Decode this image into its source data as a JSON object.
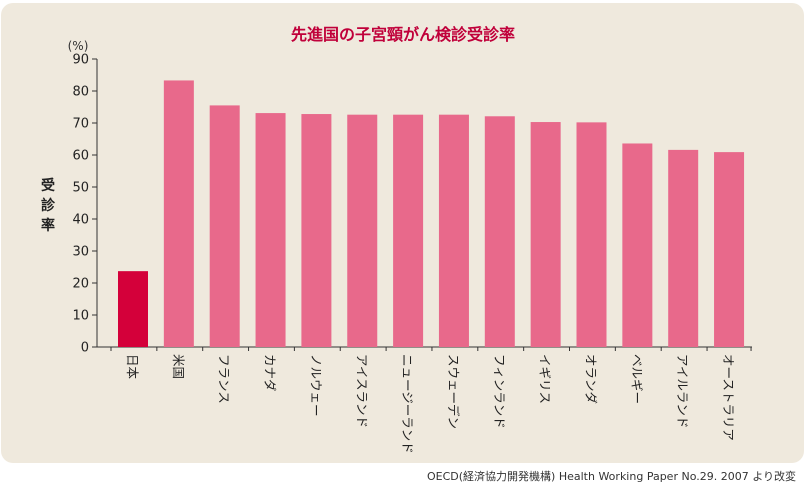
{
  "chart_data": {
    "type": "bar",
    "title": "先進国の子宮頸がん検診受診率",
    "unit_label": "(%)",
    "ylabel": "受診率",
    "xlabel": "",
    "ylim": [
      0,
      90
    ],
    "yticks": [
      0,
      10,
      20,
      30,
      40,
      50,
      60,
      70,
      80,
      90
    ],
    "categories": [
      "日本",
      "米国",
      "フランス",
      "カナダ",
      "ノルウェー",
      "アイスランド",
      "ニュージーランド",
      "スウェーデン",
      "フィンランド",
      "イギリス",
      "オランダ",
      "ベルギー",
      "アイルランド",
      "オーストラリア"
    ],
    "values": [
      23.7,
      83.3,
      75.5,
      73.1,
      72.8,
      72.6,
      72.6,
      72.6,
      72.1,
      70.3,
      70.2,
      63.6,
      61.6,
      60.9
    ],
    "highlight_index": 0,
    "grid": false,
    "legend": "none",
    "source": "OECD(経済協力開発機構) Health Working Paper No.29. 2007 より改変"
  },
  "colors": {
    "panel_bg": "#efe9dd",
    "bar": "#e8698b",
    "bar_highlight": "#d4003a",
    "title": "#c0003a",
    "axis": "#333333"
  }
}
